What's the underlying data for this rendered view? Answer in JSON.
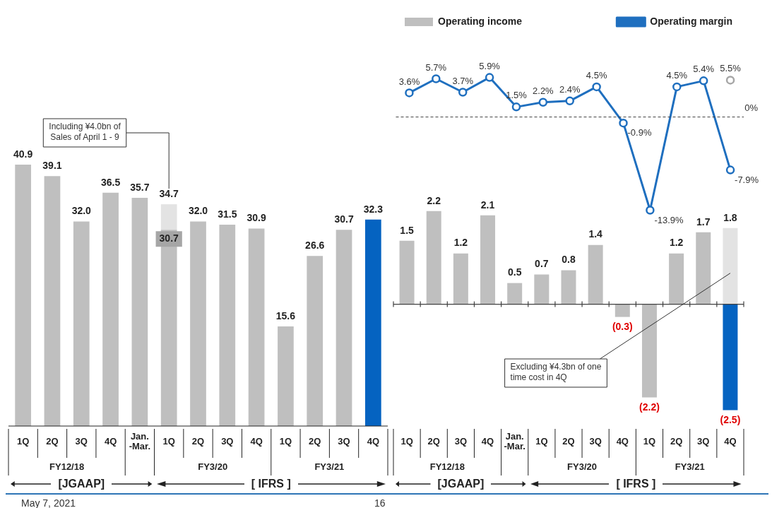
{
  "chart_data": [
    {
      "type": "bar",
      "stacked": true,
      "legend": false,
      "categories": [
        "1Q",
        "2Q",
        "3Q",
        "4Q",
        "Jan.\n-Mar.",
        "1Q",
        "2Q",
        "3Q",
        "4Q",
        "1Q",
        "2Q",
        "3Q",
        "4Q"
      ],
      "series": [
        {
          "values": [
            40.9,
            39.1,
            32.0,
            36.5,
            35.7,
            30.7,
            32.0,
            31.5,
            30.9,
            15.6,
            26.6,
            30.7,
            32.3
          ],
          "colors": [
            "#bfbfbf",
            "#bfbfbf",
            "#bfbfbf",
            "#bfbfbf",
            "#bfbfbf",
            "#bfbfbf",
            "#bfbfbf",
            "#bfbfbf",
            "#bfbfbf",
            "#bfbfbf",
            "#bfbfbf",
            "#bfbfbf",
            "#0563c1"
          ],
          "value_labels": [
            "40.9",
            "39.1",
            "32.0",
            "36.5",
            "35.7",
            "30.7",
            "32.0",
            "31.5",
            "30.9",
            "15.6",
            "26.6",
            "30.7",
            "32.3"
          ]
        },
        {
          "values": [
            null,
            null,
            null,
            null,
            null,
            4.0,
            null,
            null,
            null,
            null,
            null,
            null,
            null
          ],
          "color": "#e3e3e3"
        }
      ],
      "totals": [
        null,
        null,
        null,
        null,
        null,
        "34.7",
        null,
        null,
        null,
        null,
        null,
        null,
        null
      ],
      "annotations": [
        "Including ¥4.0bn of Sales of April 1 - 9",
        "FY12/18",
        "FY3/20",
        "FY3/21",
        "[JGAAP]",
        "[ IFRS ]",
        "May 7, 2021",
        "16"
      ]
    },
    {
      "type": "line",
      "legend": "top right",
      "tick_labels": false,
      "categories": [
        null,
        null,
        null,
        null,
        null,
        null,
        null,
        null,
        null,
        null,
        null,
        null,
        null
      ],
      "series": [
        {
          "name": "Operating margin",
          "type": "line",
          "color": "#1f6fbf",
          "marker": "circle",
          "values": [
            3.6,
            5.7,
            3.7,
            5.9,
            1.5,
            2.2,
            2.4,
            4.5,
            -0.9,
            -13.9,
            4.5,
            5.4,
            -7.9
          ],
          "value_labels": [
            "3.6%",
            "5.7%",
            "3.7%",
            "5.9%",
            "1.5%",
            "2.2%",
            "2.4%",
            "4.5%",
            "-0.9%",
            "-13.9%",
            "4.5%",
            "5.4%",
            "-7.9%"
          ]
        },
        {
          "type": "line",
          "color": "#a6a6a6",
          "marker": "circle",
          "values": [
            null,
            null,
            null,
            null,
            null,
            null,
            null,
            null,
            null,
            null,
            null,
            null,
            5.5
          ],
          "value_labels": [
            null,
            null,
            null,
            null,
            null,
            null,
            null,
            null,
            null,
            null,
            null,
            null,
            "5.5%"
          ]
        }
      ],
      "ref_lines": [
        {
          "axis": "y",
          "value": 0,
          "label": "0%",
          "line_style": "dashed",
          "color": "#404040"
        }
      ]
    },
    {
      "type": "bar",
      "stacked": true,
      "legend": "top left",
      "categories": [
        "1Q",
        "2Q",
        "3Q",
        "4Q",
        "Jan.\n-Mar.",
        "1Q",
        "2Q",
        "3Q",
        "4Q",
        "1Q",
        "2Q",
        "3Q",
        "4Q"
      ],
      "series": [
        {
          "name": "Operating income",
          "values": [
            1.5,
            2.2,
            1.2,
            2.1,
            0.5,
            0.7,
            0.8,
            1.4,
            -0.3,
            -2.2,
            1.2,
            1.7,
            -2.5
          ],
          "color": "#bfbfbf",
          "colors": [
            "#bfbfbf",
            "#bfbfbf",
            "#bfbfbf",
            "#bfbfbf",
            "#bfbfbf",
            "#bfbfbf",
            "#bfbfbf",
            "#bfbfbf",
            "#bfbfbf",
            "#bfbfbf",
            "#bfbfbf",
            "#bfbfbf",
            "#0563c1"
          ],
          "value_labels": [
            "1.5",
            "2.2",
            "1.2",
            "2.1",
            "0.5",
            "0.7",
            "0.8",
            "1.4",
            "(0.3)",
            "(2.2)",
            "1.2",
            "1.7",
            "(2.5)"
          ]
        },
        {
          "values": [
            null,
            null,
            null,
            null,
            null,
            null,
            null,
            null,
            null,
            null,
            null,
            null,
            1.8
          ],
          "color": "#e3e3e3",
          "value_labels": [
            null,
            null,
            null,
            null,
            null,
            null,
            null,
            null,
            null,
            null,
            null,
            null,
            "1.8"
          ]
        }
      ],
      "annotations": [
        "Excluding ¥4.3bn of one time cost in 4Q"
      ]
    }
  ]
}
